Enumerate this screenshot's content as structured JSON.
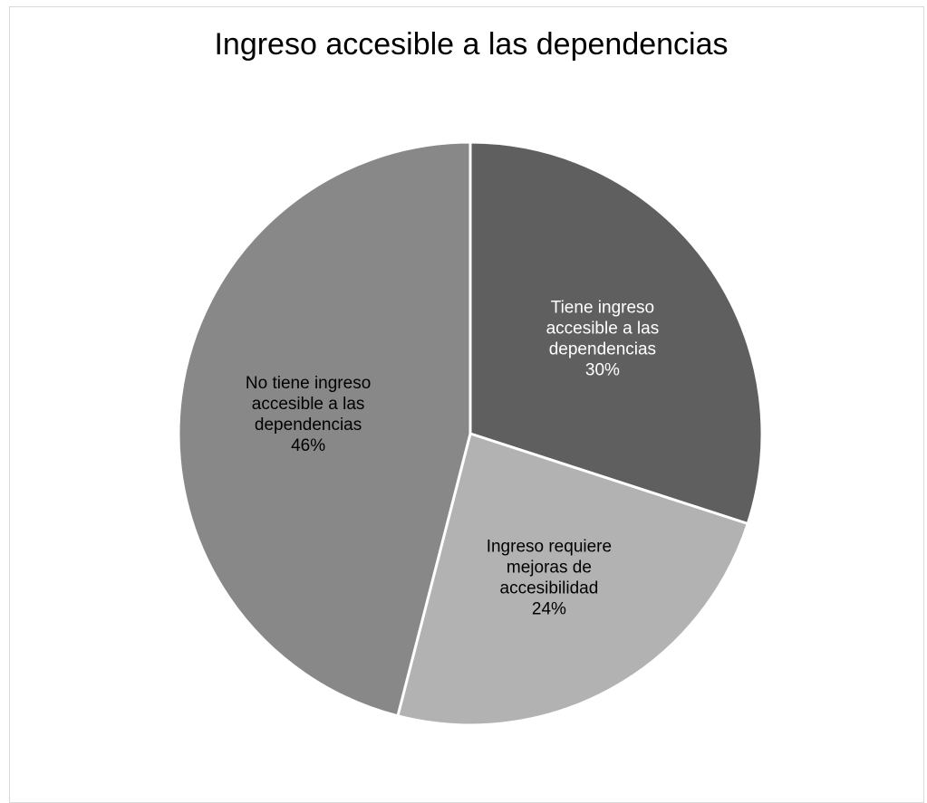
{
  "chart_data": {
    "type": "pie",
    "title": "Ingreso accesible a las dependencias",
    "slices": [
      {
        "label_lines": [
          "Tiene ingreso",
          "accesible a las",
          "dependencias"
        ],
        "percent_label": "30%",
        "value": 30,
        "color": "#5f5f5f",
        "label_color": "#ffffff"
      },
      {
        "label_lines": [
          "Ingreso requiere",
          "mejoras de",
          "accesibilidad"
        ],
        "percent_label": "24%",
        "value": 24,
        "color": "#b2b2b2",
        "label_color": "#000000"
      },
      {
        "label_lines": [
          "No tiene ingreso",
          "accesible a las",
          "dependencias"
        ],
        "percent_label": "46%",
        "value": 46,
        "color": "#888888",
        "label_color": "#000000"
      }
    ],
    "legend": "none",
    "start_angle": "12 o'clock",
    "direction": "clockwise"
  }
}
